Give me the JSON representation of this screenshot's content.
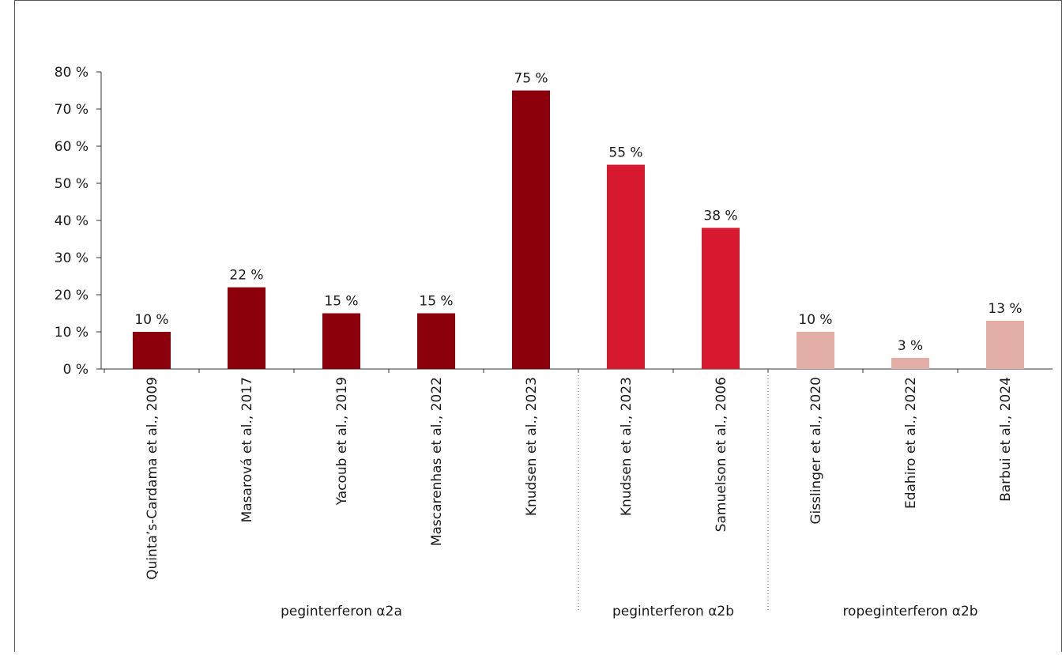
{
  "chart_data": {
    "type": "bar",
    "ylim": [
      0,
      80
    ],
    "yticks": [
      {
        "value": 0,
        "label": "0 %"
      },
      {
        "value": 10,
        "label": "10 %"
      },
      {
        "value": 20,
        "label": "20 %"
      },
      {
        "value": 30,
        "label": "30 %"
      },
      {
        "value": 40,
        "label": "40 %"
      },
      {
        "value": 50,
        "label": "50 %"
      },
      {
        "value": 60,
        "label": "60 %"
      },
      {
        "value": 70,
        "label": "70 %"
      },
      {
        "value": 80,
        "label": "80 %"
      }
    ],
    "groups": [
      {
        "name": "peginterferon α2a",
        "color": "#8b000b",
        "categories": [
          "Quinta’s-Cardama et al., 2009",
          "Masarová et al., 2017",
          "Yacoub et al., 2019",
          "Mascarenhas et al., 2022",
          "Knudsen et al., 2023"
        ],
        "values": [
          10,
          22,
          15,
          15,
          75
        ],
        "value_labels": [
          "10 %",
          "22 %",
          "15 %",
          "15 %",
          "75 %"
        ]
      },
      {
        "name": "peginterferon α2b",
        "color": "#d7192f",
        "categories": [
          "Knudsen et al., 2023",
          "Samuelson et al., 2006"
        ],
        "values": [
          55,
          38
        ],
        "value_labels": [
          "55 %",
          "38 %"
        ]
      },
      {
        "name": "ropeginterferon α2b",
        "color": "#e3aea6",
        "categories": [
          "Gisslinger et al., 2020",
          "Edahiro et al., 2022",
          "Barbui et al., 2024"
        ],
        "values": [
          10,
          3,
          13
        ],
        "value_labels": [
          "10 %",
          "3 %",
          "13 %"
        ]
      }
    ]
  }
}
